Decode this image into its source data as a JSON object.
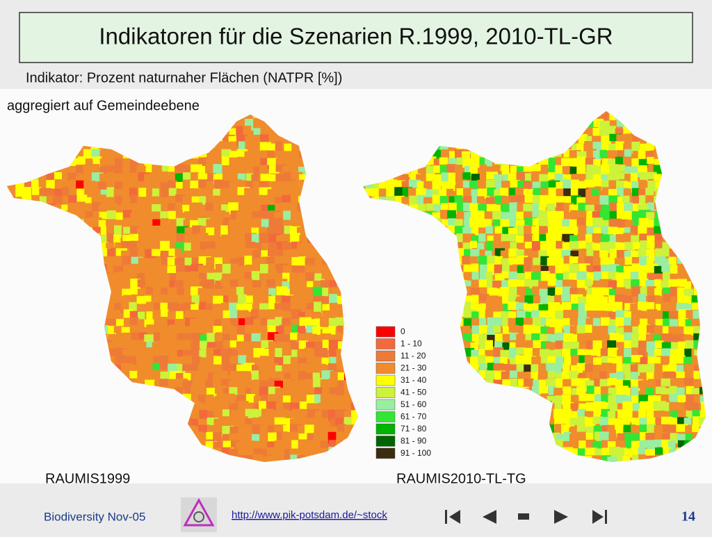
{
  "header": {
    "title": "Indikatoren für die Szenarien R.1999, 2010-TL-GR",
    "subtitle": "Indikator: Prozent naturnaher Flächen (NATPR [%])",
    "note": "aggregiert auf Gemeindeebene"
  },
  "maps": [
    {
      "label": "RAUMIS1999"
    },
    {
      "label": "RAUMIS2010-TL-TG"
    }
  ],
  "legend": [
    {
      "label": "0",
      "color": "#ff0000"
    },
    {
      "label": "1 - 10",
      "color": "#f26a3c"
    },
    {
      "label": "11 - 20",
      "color": "#ee7a38"
    },
    {
      "label": "21 - 30",
      "color": "#f08c2c"
    },
    {
      "label": "31 - 40",
      "color": "#ffff00"
    },
    {
      "label": "41 - 50",
      "color": "#ccf23a"
    },
    {
      "label": "51 - 60",
      "color": "#99eea0"
    },
    {
      "label": "61 - 70",
      "color": "#33e633"
    },
    {
      "label": "71 - 80",
      "color": "#00b400"
    },
    {
      "label": "81 - 90",
      "color": "#006400"
    },
    {
      "label": "91 - 100",
      "color": "#3c2c10"
    }
  ],
  "footer": {
    "left": "Biodiversity Nov-05",
    "link": "http://www.pik-potsdam.de/~stock",
    "page": "14"
  }
}
